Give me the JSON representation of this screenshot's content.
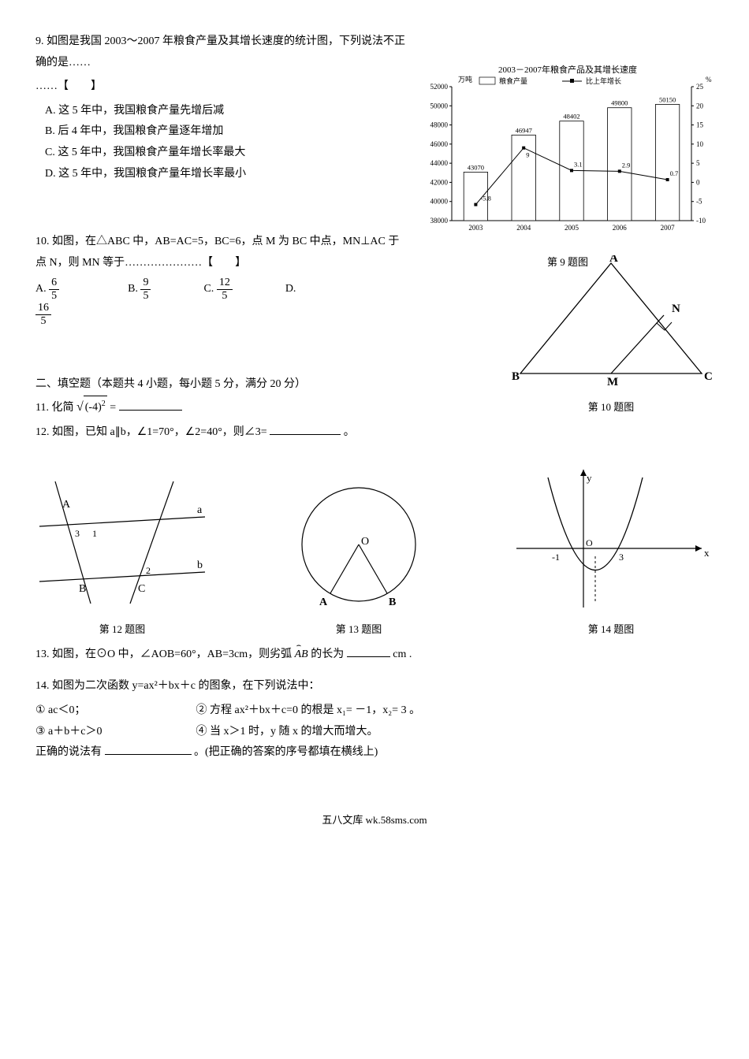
{
  "q9": {
    "text": "9. 如图是我国 2003～2007 年粮食产量及其增长速度的统计图，下列说法不正确的是……",
    "text2": "……【　　】",
    "optA": "A. 这 5 年中，我国粮食产量先增后减",
    "optB": "B. 后 4 年中，我国粮食产量逐年增加",
    "optC": "C. 这 5 年中，我国粮食产量年增长率最大",
    "optD": "D. 这 5 年中，我国粮食产量年增长率最小"
  },
  "chart9": {
    "title": "2003－2007年粮食产品及其增长速度",
    "left_unit": "万吨",
    "right_unit": "%",
    "legend_bar": "粮食产量",
    "legend_line": "比上年增长",
    "years": [
      "2003",
      "2004",
      "2005",
      "2006",
      "2007"
    ],
    "bar_values": [
      43070,
      46947,
      48402,
      49800,
      50150
    ],
    "line_values": [
      -5.8,
      9.0,
      3.1,
      2.9,
      0.7
    ],
    "left_ticks": [
      38000,
      40000,
      42000,
      44000,
      46000,
      48000,
      50000,
      52000
    ],
    "right_ticks": [
      -10,
      -5,
      0,
      5,
      10,
      15,
      20,
      25
    ],
    "bar_color": "#ffffff",
    "bar_border": "#000000",
    "line_color": "#000000",
    "axis_color": "#000000",
    "label": "第 9 题图"
  },
  "q10": {
    "text": "10. 如图，在△ABC 中，AB=AC=5，BC=6，点 M 为 BC 中点，MN⊥AC 于点 N，则 MN 等于…………………【　　】",
    "A_prefix": "A. ",
    "A_n": "6",
    "A_d": "5",
    "B_prefix": "B. ",
    "B_n": "9",
    "B_d": "5",
    "C_prefix": "C. ",
    "C_n": "12",
    "C_d": "5",
    "D_prefix": "D. ",
    "D_n": "16",
    "D_d": "5"
  },
  "fig10": {
    "label": "第 10 题图",
    "A": "A",
    "B": "B",
    "C": "C",
    "M": "M",
    "N": "N",
    "stroke": "#000000"
  },
  "sec2": "二、填空题（本题共 4 小题，每小题 5 分，满分 20 分）",
  "q11": {
    "prefix": "11. 化简 ",
    "radicand": "(-4)",
    "exp": "2",
    "eq": " ="
  },
  "q12": "12. 如图，已知 a∥b，∠1=70°，∠2=40°，则∠3= ",
  "q12_tail": "。",
  "fig12": {
    "label": "第 12 题图",
    "a": "a",
    "b": "b",
    "A": "A",
    "B": "B",
    "C": "C",
    "n1": "1",
    "n2": "2",
    "n3": "3",
    "stroke": "#000000"
  },
  "fig13": {
    "label": "第 13 题图",
    "O": "O",
    "A": "A",
    "B": "B",
    "stroke": "#000000"
  },
  "fig14": {
    "label": "第 14 题图",
    "x": "x",
    "y": "y",
    "m1": "-1",
    "O": "O",
    "p3": "3",
    "stroke": "#000000"
  },
  "q13": {
    "prefix": "13. 如图，在⊙O 中，∠AOB=60°，AB=3cm，则劣弧 ",
    "arc": "AB",
    "mid": " 的长为",
    "tail": "cm ."
  },
  "q14": {
    "l1": "14. 如图为二次函数 y=ax²＋bx＋c 的图象，在下列说法中：",
    "c1": "① ac＜0；",
    "c2": "② 方程 ax²＋bx＋c=0 的根是 x₁= －1，x₂= 3 。",
    "c3": "③ a＋b＋c＞0",
    "c4": "④ 当 x＞1 时，y 随 x 的增大而增大。",
    "l3a": "正确的说法有",
    "l3b": "。(把正确的答案的序号都填在横线上)"
  },
  "footer": "五八文库 wk.58sms.com"
}
